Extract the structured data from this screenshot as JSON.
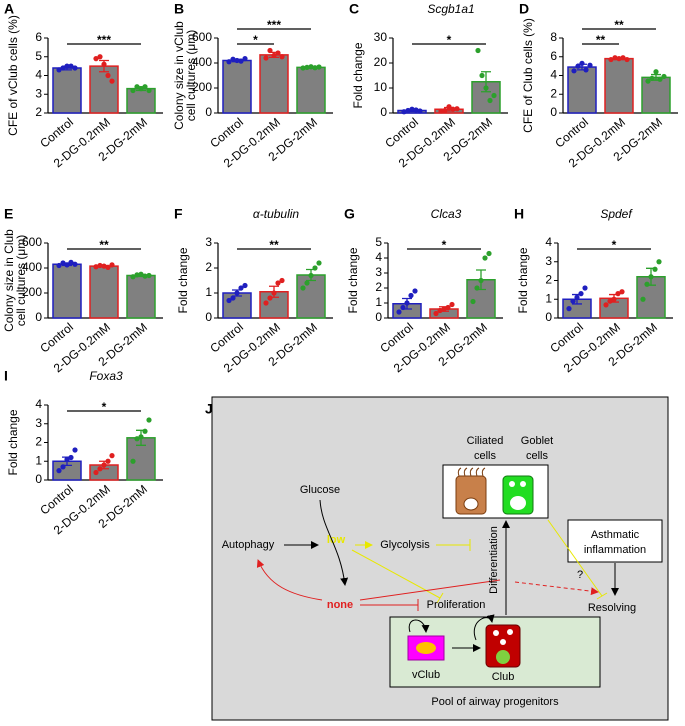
{
  "chart_data": [
    {
      "type": "bar",
      "panel": "A",
      "ylabel": [
        "CFE of vClub cells (%)"
      ],
      "categories": [
        "Control",
        "2-DG-0.2mM",
        "2-DG-2mM"
      ],
      "values": [
        4.4,
        4.5,
        3.3
      ],
      "errors": [
        0.1,
        0.3,
        0.1
      ],
      "points": [
        [
          4.3,
          4.4,
          4.5,
          4.5,
          4.4
        ],
        [
          4.9,
          5.0,
          4.6,
          4.0,
          3.7
        ],
        [
          3.2,
          3.4,
          3.3,
          3.4,
          3.2
        ]
      ],
      "colors": [
        "#1f1fbf",
        "#e02020",
        "#2ca02c"
      ],
      "bar_color": "#808080",
      "ylim": [
        2,
        6
      ],
      "yticks": [
        2,
        3,
        4,
        5,
        6
      ],
      "brackets": [
        {
          "from": 0,
          "to": 2,
          "label": "***"
        }
      ]
    },
    {
      "type": "bar",
      "panel": "B",
      "ylabel": [
        "Colony size in vClub",
        "cell cultures (μm)"
      ],
      "categories": [
        "Control",
        "2-DG-0.2mM",
        "2-DG-2mM"
      ],
      "values": [
        420,
        465,
        365
      ],
      "errors": [
        10,
        20,
        5
      ],
      "points": [
        [
          410,
          430,
          420,
          415,
          435
        ],
        [
          440,
          500,
          460,
          480,
          450
        ],
        [
          360,
          365,
          370,
          362,
          368
        ]
      ],
      "colors": [
        "#1f1fbf",
        "#e02020",
        "#2ca02c"
      ],
      "bar_color": "#808080",
      "ylim": [
        0,
        600
      ],
      "yticks": [
        0,
        200,
        400,
        600
      ],
      "brackets": [
        {
          "from": 0,
          "to": 1,
          "label": "*"
        },
        {
          "from": 0,
          "to": 2,
          "label": "***"
        }
      ]
    },
    {
      "type": "bar",
      "panel": "C",
      "title": "Scgb1a1",
      "ylabel": [
        "Fold change"
      ],
      "categories": [
        "Control",
        "2-DG-0.2mM",
        "2-DG-2mM"
      ],
      "values": [
        1,
        1.5,
        12.5
      ],
      "errors": [
        0.4,
        0.7,
        4
      ],
      "points": [
        [
          0.5,
          1.0,
          1.5,
          1.2,
          0.8
        ],
        [
          0.8,
          1.0,
          2.5,
          1.5,
          1.7
        ],
        [
          25,
          15,
          10,
          5,
          7
        ]
      ],
      "colors": [
        "#1f1fbf",
        "#e02020",
        "#2ca02c"
      ],
      "bar_color": "#808080",
      "ylim": [
        0,
        30
      ],
      "yticks": [
        0,
        10,
        20,
        30
      ],
      "brackets": [
        {
          "from": 0,
          "to": 2,
          "label": "*"
        }
      ]
    },
    {
      "type": "bar",
      "panel": "D",
      "ylabel": [
        "CFE of Club cells (%)"
      ],
      "categories": [
        "Control",
        "2-DG-0.2mM",
        "2-DG-2mM"
      ],
      "values": [
        4.9,
        5.8,
        3.8
      ],
      "errors": [
        0.3,
        0.1,
        0.3
      ],
      "points": [
        [
          4.5,
          5.0,
          5.3,
          4.6,
          5.1
        ],
        [
          5.7,
          5.9,
          5.8,
          5.9,
          5.7
        ],
        [
          3.4,
          3.7,
          4.4,
          3.6,
          3.9
        ]
      ],
      "colors": [
        "#1f1fbf",
        "#e02020",
        "#2ca02c"
      ],
      "bar_color": "#808080",
      "ylim": [
        0,
        8
      ],
      "yticks": [
        0,
        2,
        4,
        6,
        8
      ],
      "brackets": [
        {
          "from": 0,
          "to": 1,
          "label": "**"
        },
        {
          "from": 0,
          "to": 2,
          "label": "**"
        }
      ]
    },
    {
      "type": "bar",
      "panel": "E",
      "ylabel": [
        "Colony size in Club",
        "cell cultures (μm)"
      ],
      "categories": [
        "Control",
        "2-DG-0.2mM",
        "2-DG-2mM"
      ],
      "values": [
        430,
        415,
        340
      ],
      "errors": [
        10,
        5,
        8
      ],
      "points": [
        [
          420,
          440,
          425,
          445,
          430
        ],
        [
          410,
          420,
          415,
          405,
          425
        ],
        [
          330,
          345,
          350,
          335,
          340
        ]
      ],
      "colors": [
        "#1f1fbf",
        "#e02020",
        "#2ca02c"
      ],
      "bar_color": "#808080",
      "ylim": [
        0,
        600
      ],
      "yticks": [
        0,
        200,
        400,
        600
      ],
      "brackets": [
        {
          "from": 0,
          "to": 2,
          "label": "**"
        }
      ]
    },
    {
      "type": "bar",
      "panel": "F",
      "title": "α-tubulin",
      "ylabel": [
        "Fold change"
      ],
      "categories": [
        "Control",
        "2-DG-0.2mM",
        "2-DG-2mM"
      ],
      "values": [
        1.0,
        1.05,
        1.72
      ],
      "errors": [
        0.12,
        0.22,
        0.22
      ],
      "points": [
        [
          0.7,
          0.8,
          1.0,
          1.2,
          1.3
        ],
        [
          0.6,
          0.8,
          1.0,
          1.4,
          1.5
        ],
        [
          1.2,
          1.4,
          1.7,
          2.0,
          2.2
        ]
      ],
      "colors": [
        "#1f1fbf",
        "#e02020",
        "#2ca02c"
      ],
      "bar_color": "#808080",
      "ylim": [
        0,
        3
      ],
      "yticks": [
        0,
        1,
        2,
        3
      ],
      "brackets": [
        {
          "from": 0,
          "to": 2,
          "label": "**"
        }
      ]
    },
    {
      "type": "bar",
      "panel": "G",
      "title": "Clca3",
      "ylabel": [
        "Fold change"
      ],
      "categories": [
        "Control",
        "2-DG-0.2mM",
        "2-DG-2mM"
      ],
      "values": [
        0.95,
        0.6,
        2.55
      ],
      "errors": [
        0.35,
        0.15,
        0.65
      ],
      "points": [
        [
          0.4,
          0.7,
          1.0,
          1.5,
          1.8
        ],
        [
          0.3,
          0.5,
          0.6,
          0.7,
          0.9
        ],
        [
          1.1,
          2.0,
          2.5,
          4.0,
          4.3
        ]
      ],
      "colors": [
        "#1f1fbf",
        "#e02020",
        "#2ca02c"
      ],
      "bar_color": "#808080",
      "ylim": [
        0,
        5
      ],
      "yticks": [
        0,
        1,
        2,
        3,
        4,
        5
      ],
      "brackets": [
        {
          "from": 0,
          "to": 2,
          "label": "*"
        }
      ]
    },
    {
      "type": "bar",
      "panel": "H",
      "title": "Spdef",
      "ylabel": [
        "Fold change"
      ],
      "categories": [
        "Control",
        "2-DG-0.2mM",
        "2-DG-2mM"
      ],
      "values": [
        1.0,
        1.05,
        2.2
      ],
      "errors": [
        0.25,
        0.2,
        0.45
      ],
      "points": [
        [
          0.5,
          0.9,
          1.1,
          1.3,
          1.6
        ],
        [
          0.7,
          0.9,
          1.0,
          1.3,
          1.4
        ],
        [
          1.0,
          1.8,
          2.2,
          2.6,
          3.0
        ]
      ],
      "colors": [
        "#1f1fbf",
        "#e02020",
        "#2ca02c"
      ],
      "bar_color": "#808080",
      "ylim": [
        0,
        4
      ],
      "yticks": [
        0,
        1,
        2,
        3,
        4
      ],
      "brackets": [
        {
          "from": 0,
          "to": 2,
          "label": "*"
        }
      ]
    },
    {
      "type": "bar",
      "panel": "I",
      "title": "Foxa3",
      "ylabel": [
        "Fold change"
      ],
      "categories": [
        "Control",
        "2-DG-0.2mM",
        "2-DG-2mM"
      ],
      "values": [
        1.0,
        0.8,
        2.25
      ],
      "errors": [
        0.22,
        0.2,
        0.4
      ],
      "points": [
        [
          0.5,
          0.7,
          1.1,
          1.2,
          1.6
        ],
        [
          0.4,
          0.6,
          0.8,
          1.0,
          1.3
        ],
        [
          1.0,
          2.2,
          2.3,
          2.6,
          3.2
        ]
      ],
      "colors": [
        "#1f1fbf",
        "#e02020",
        "#2ca02c"
      ],
      "bar_color": "#808080",
      "ylim": [
        0,
        4
      ],
      "yticks": [
        0,
        1,
        2,
        3,
        4
      ],
      "brackets": [
        {
          "from": 0,
          "to": 2,
          "label": "*"
        }
      ]
    }
  ],
  "diagram": {
    "panel": "J",
    "ciliated": [
      "Ciliated",
      "cells"
    ],
    "goblet": [
      "Goblet",
      "cells"
    ],
    "glucose": "Glucose",
    "autophagy": "Autophagy",
    "low": "low",
    "glycolysis": "Glycolysis",
    "differentiation": "Differentiation",
    "asthma": [
      "Asthmatic",
      "inflammation"
    ],
    "question": "?",
    "resolving": "Resolving",
    "none": "none",
    "proliferation": "Proliferation",
    "vclub": "vClub",
    "club": "Club",
    "pool": "Pool of airway progenitors"
  }
}
